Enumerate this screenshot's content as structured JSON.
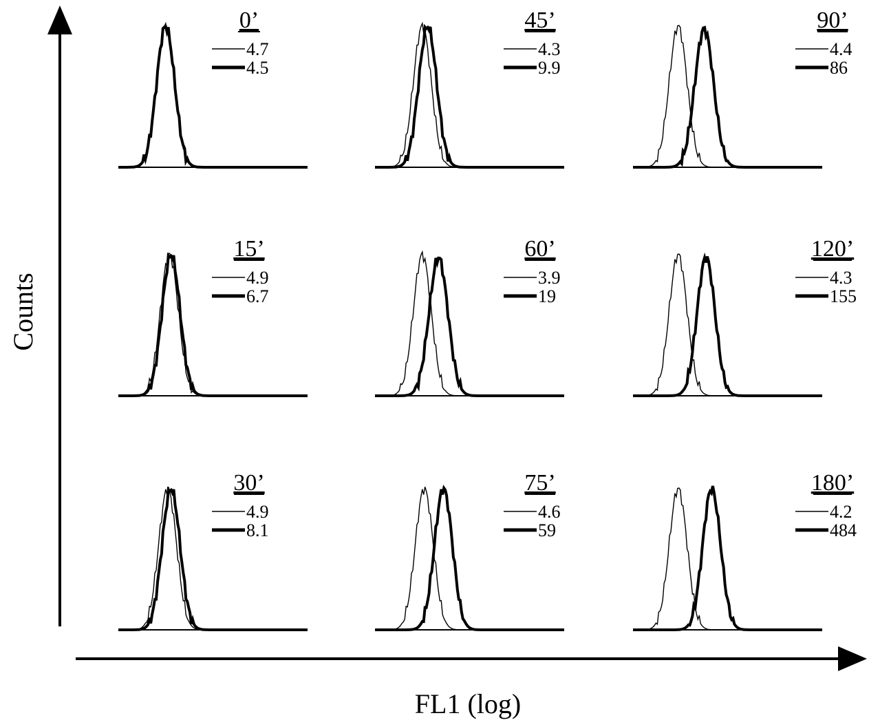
{
  "chart_data": {
    "type": "line",
    "xlabel": "FL1 (log)",
    "ylabel": "Counts",
    "panels": [
      {
        "time": "0’",
        "series": [
          {
            "style": "thin",
            "mean": "4.7",
            "peak": 10,
            "width": 1.0,
            "height": 1.0
          },
          {
            "style": "thick",
            "mean": "4.5",
            "peak": 10,
            "width": 1.0,
            "height": 1.0
          }
        ]
      },
      {
        "time": "45’",
        "series": [
          {
            "style": "thin",
            "mean": "4.3",
            "peak": 10,
            "width": 1.0,
            "height": 1.0
          },
          {
            "style": "thick",
            "mean": "9.9",
            "peak": 13,
            "width": 1.0,
            "height": 1.0
          }
        ]
      },
      {
        "time": "90’",
        "series": [
          {
            "style": "thin",
            "mean": "4.4",
            "peak": 9,
            "width": 1.0,
            "height": 1.0
          },
          {
            "style": "thick",
            "mean": "86",
            "peak": 32,
            "width": 1.05,
            "height": 0.98
          }
        ]
      },
      {
        "time": "15’",
        "series": [
          {
            "style": "thin",
            "mean": "4.9",
            "peak": 12,
            "width": 1.0,
            "height": 1.0
          },
          {
            "style": "thick",
            "mean": "6.7",
            "peak": 13,
            "width": 1.0,
            "height": 1.0
          }
        ]
      },
      {
        "time": "60’",
        "series": [
          {
            "style": "thin",
            "mean": "3.9",
            "peak": 10,
            "width": 1.0,
            "height": 1.0
          },
          {
            "style": "thick",
            "mean": "19",
            "peak": 22,
            "width": 1.05,
            "height": 0.98
          }
        ]
      },
      {
        "time": "120’",
        "series": [
          {
            "style": "thin",
            "mean": "4.3",
            "peak": 9,
            "width": 1.0,
            "height": 1.0
          },
          {
            "style": "thick",
            "mean": "155",
            "peak": 35,
            "width": 1.0,
            "height": 0.98
          }
        ]
      },
      {
        "time": "30’",
        "series": [
          {
            "style": "thin",
            "mean": "4.9",
            "peak": 11,
            "width": 1.0,
            "height": 1.0
          },
          {
            "style": "thick",
            "mean": "8.1",
            "peak": 13,
            "width": 1.0,
            "height": 1.0
          }
        ]
      },
      {
        "time": "75’",
        "series": [
          {
            "style": "thin",
            "mean": "4.6",
            "peak": 11,
            "width": 1.0,
            "height": 1.0
          },
          {
            "style": "thick",
            "mean": "59",
            "peak": 28,
            "width": 1.0,
            "height": 1.0
          }
        ]
      },
      {
        "time": "180’",
        "series": [
          {
            "style": "thin",
            "mean": "4.2",
            "peak": 9,
            "width": 1.0,
            "height": 1.0
          },
          {
            "style": "thick",
            "mean": "484",
            "peak": 46,
            "width": 1.0,
            "height": 1.0
          }
        ]
      }
    ]
  }
}
